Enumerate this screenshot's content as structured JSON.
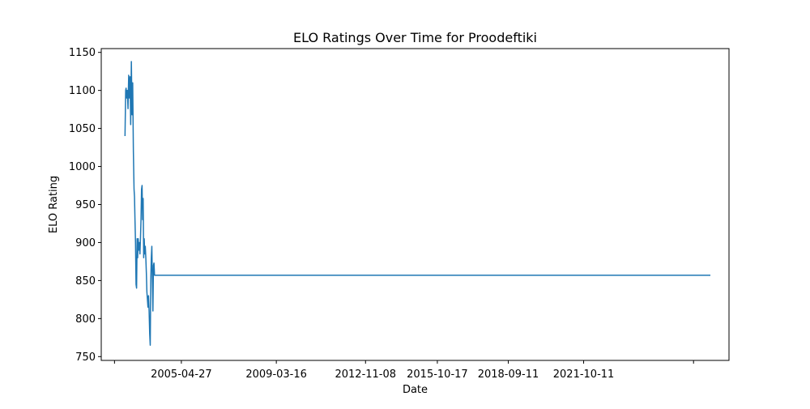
{
  "chart_data": {
    "type": "line",
    "title": "ELO Ratings Over Time for Proodeftiki",
    "xlabel": "Date",
    "ylabel": "ELO Rating",
    "ylim": [
      745,
      1155
    ],
    "xlim": [
      "2002-01-16",
      "2027-09-22"
    ],
    "x_ticks": [
      "",
      "2005-04-27",
      "2009-03-16",
      "2012-11-08",
      "2015-10-17",
      "2018-09-11",
      "2021-10-11",
      ""
    ],
    "x_tick_dates": [
      "2002-08-02",
      "2005-04-27",
      "2009-03-16",
      "2012-11-08",
      "2015-10-17",
      "2018-09-11",
      "2021-10-11",
      "2026-04-10"
    ],
    "y_ticks": [
      750,
      800,
      850,
      900,
      950,
      1000,
      1050,
      1100,
      1150
    ],
    "grid": false,
    "legend": "none",
    "series": [
      {
        "color": "#1f77b4",
        "x": [
          "2003-01-06",
          "2003-01-16",
          "2003-01-22",
          "2003-02-01",
          "2003-02-10",
          "2003-02-20",
          "2003-03-02",
          "2003-03-12",
          "2003-03-22",
          "2003-04-01",
          "2003-04-11",
          "2003-04-21",
          "2003-05-01",
          "2003-05-11",
          "2003-05-21",
          "2003-05-28",
          "2003-06-04",
          "2003-06-12",
          "2003-06-20",
          "2003-06-28",
          "2003-07-06",
          "2003-07-14",
          "2003-07-22",
          "2003-08-01",
          "2003-08-09",
          "2003-08-17",
          "2003-08-25",
          "2003-09-02",
          "2003-09-10",
          "2003-09-18",
          "2003-09-26",
          "2003-10-04",
          "2003-10-12",
          "2003-10-20",
          "2003-10-28",
          "2003-11-05",
          "2003-11-13",
          "2003-11-21",
          "2003-11-29",
          "2003-12-07",
          "2003-12-15",
          "2003-12-23",
          "2004-01-01",
          "2004-01-10",
          "2004-01-18",
          "2004-01-26",
          "2004-02-03",
          "2004-02-11",
          "2004-02-19",
          "2004-02-27",
          "2004-03-06",
          "2004-03-14",
          "2004-03-22",
          "2004-03-30",
          "2004-04-07",
          "2004-04-15",
          "2004-04-23",
          "2004-05-01",
          "2004-05-09",
          "2004-05-17",
          "2004-05-25",
          "2004-06-02",
          "2004-06-10",
          "2004-06-18",
          "2004-06-26",
          "2004-07-04",
          "2004-07-12",
          "2004-07-20",
          "2004-07-28",
          "2004-08-05",
          "2026-12-18"
        ],
        "y": [
          1040,
          1100,
          1103,
          1090,
          1100,
          1076,
          1120,
          1090,
          1118,
          1055,
          1138,
          1068,
          1110,
          1020,
          970,
          960,
          930,
          900,
          845,
          840,
          905,
          880,
          905,
          890,
          900,
          885,
          905,
          930,
          970,
          975,
          930,
          958,
          880,
          905,
          885,
          895,
          880,
          860,
          835,
          825,
          815,
          830,
          810,
          780,
          765,
          850,
          880,
          895,
          850,
          810,
          870,
          873,
          857,
          857,
          857,
          857,
          857,
          857,
          857,
          857,
          857,
          857,
          857,
          857,
          857,
          857,
          857,
          857,
          857,
          857,
          857
        ]
      }
    ]
  }
}
